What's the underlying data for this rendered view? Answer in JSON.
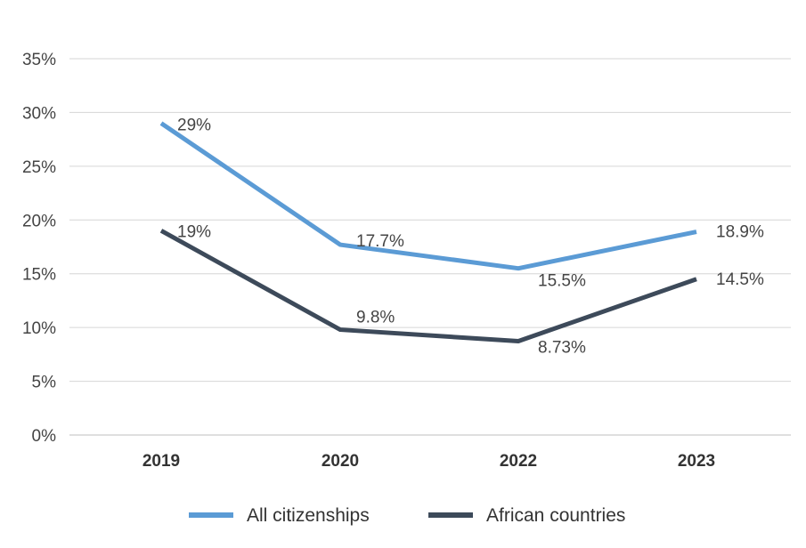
{
  "chart_data": {
    "type": "line",
    "title": "",
    "xlabel": "",
    "ylabel": "",
    "categories": [
      "2019",
      "2020",
      "2022",
      "2023"
    ],
    "ylim": [
      0,
      35
    ],
    "yticks": [
      0,
      5,
      10,
      15,
      20,
      25,
      30,
      35
    ],
    "ytick_labels": [
      "0%",
      "5%",
      "10%",
      "15%",
      "20%",
      "25%",
      "30%",
      "35%"
    ],
    "grid": true,
    "legend_position": "bottom",
    "series": [
      {
        "name": "All citizenships",
        "color": "#5b9bd5",
        "values": [
          29,
          17.7,
          15.5,
          18.9
        ],
        "labels": [
          "29%",
          "17.7%",
          "15.5%",
          "18.9%"
        ],
        "label_positions": [
          "right-below",
          "right-below",
          "right-below",
          "right"
        ]
      },
      {
        "name": "African countries",
        "color": "#3d4a5a",
        "values": [
          19,
          9.8,
          8.73,
          14.5
        ],
        "labels": [
          "19%",
          "9.8%",
          "8.73%",
          "14.5%"
        ],
        "label_positions": [
          "right",
          "right-above",
          "right-below",
          "right"
        ]
      }
    ]
  }
}
